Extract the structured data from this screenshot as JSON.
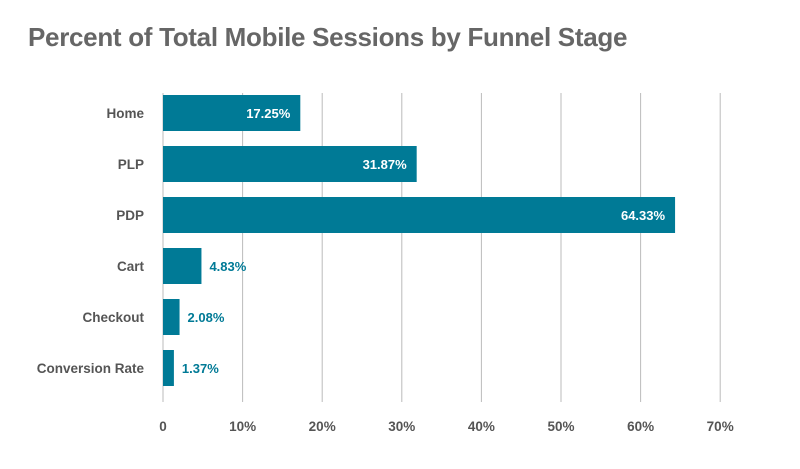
{
  "chart_data": {
    "type": "bar",
    "orientation": "horizontal",
    "title": "Percent of Total Mobile Sessions by Funnel Stage",
    "categories": [
      "Home",
      "PLP",
      "PDP",
      "Cart",
      "Checkout",
      "Conversion Rate"
    ],
    "values": [
      17.25,
      31.87,
      64.33,
      4.83,
      2.08,
      1.37
    ],
    "value_labels": [
      "17.25%",
      "31.87%",
      "64.33%",
      "4.83%",
      "2.08%",
      "1.37%"
    ],
    "x_ticks": [
      0,
      10,
      20,
      30,
      40,
      50,
      60,
      70
    ],
    "x_tick_labels": [
      "0",
      "10%",
      "20%",
      "30%",
      "40%",
      "50%",
      "60%",
      "70%"
    ],
    "xlim": [
      0,
      70
    ],
    "xlabel": "",
    "ylabel": "",
    "grid": "vertical",
    "legend": "none",
    "bar_color": "#007a96",
    "label_inside_color": "#ffffff",
    "label_outside_color": "#007a96",
    "grid_color": "#bbbbbb",
    "text_color": "#555555"
  }
}
